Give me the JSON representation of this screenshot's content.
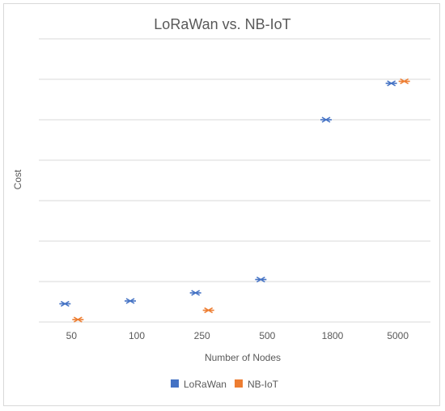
{
  "chart_data": {
    "type": "scatter",
    "title": "LoRaWan vs. NB-IoT",
    "xlabel": "Number of Nodes",
    "ylabel": "Cost",
    "categories": [
      "50",
      "100",
      "250",
      "500",
      "1800",
      "5000"
    ],
    "grid": true,
    "legend": "bottom",
    "y_axis_ticks_visible": false,
    "ylim": [
      0,
      7
    ],
    "series": [
      {
        "name": "LoRaWan",
        "color": "#4472c4",
        "marker": "x",
        "values": [
          0.45,
          0.52,
          0.72,
          1.05,
          5.0,
          5.9
        ]
      },
      {
        "name": "NB-IoT",
        "color": "#ed7d31",
        "marker": "x",
        "values": [
          0.06,
          null,
          0.29,
          null,
          null,
          5.95
        ]
      }
    ]
  }
}
